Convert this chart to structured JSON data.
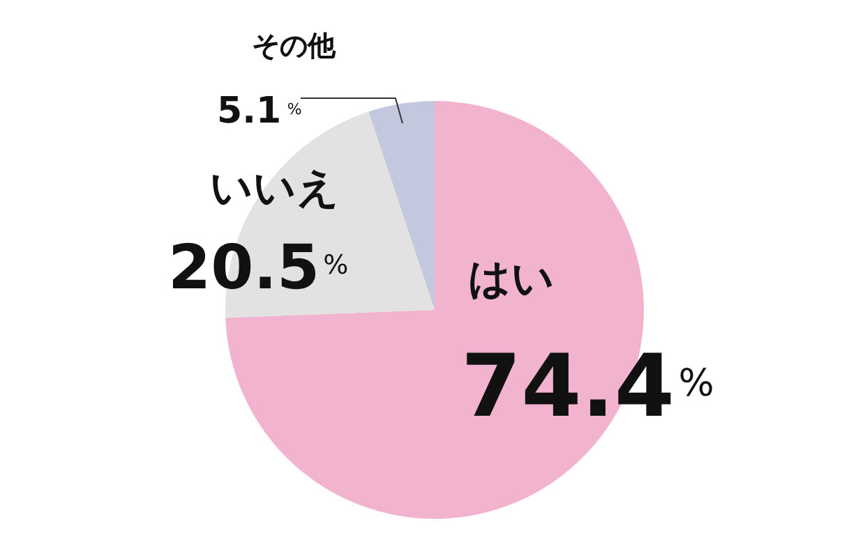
{
  "chart_data": {
    "type": "pie",
    "categories": [
      "はい",
      "いいえ",
      "その他"
    ],
    "values": [
      74.4,
      20.5,
      5.1
    ],
    "colors": [
      "#f2b3cf",
      "#e2e2e2",
      "#c4c8de"
    ],
    "value_labels": [
      "74.4%",
      "20.5%",
      "5.1%"
    ]
  }
}
